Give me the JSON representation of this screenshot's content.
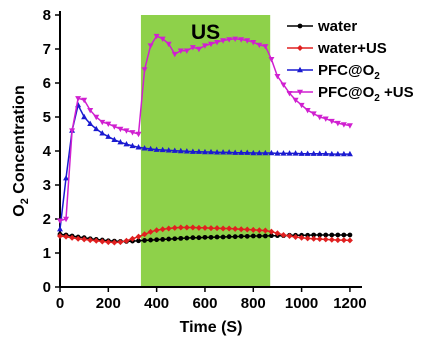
{
  "chart_data": {
    "type": "line",
    "title": "",
    "xlabel": "Time (S)",
    "ylabel_parts": [
      "O",
      "2",
      " Concentration"
    ],
    "xlim": [
      0,
      1250
    ],
    "ylim": [
      0,
      8
    ],
    "x_ticks": [
      0,
      200,
      400,
      600,
      800,
      1000,
      1200
    ],
    "y_ticks": [
      0,
      1,
      2,
      3,
      4,
      5,
      6,
      7,
      8
    ],
    "grid": false,
    "legend_position": "top-right",
    "shaded_region": {
      "x_start": 335,
      "x_end": 870,
      "label": "US",
      "color": "#8ed14a"
    },
    "series": [
      {
        "name": "water",
        "name_parts": [
          "water"
        ],
        "color": "#000000",
        "marker": "circle",
        "x": [
          0,
          25,
          50,
          75,
          100,
          125,
          150,
          175,
          200,
          225,
          250,
          275,
          300,
          325,
          350,
          375,
          400,
          425,
          450,
          475,
          500,
          525,
          550,
          575,
          600,
          625,
          650,
          675,
          700,
          725,
          750,
          775,
          800,
          825,
          850,
          875,
          900,
          925,
          950,
          975,
          1000,
          1025,
          1050,
          1075,
          1100,
          1125,
          1150,
          1175,
          1200
        ],
        "y": [
          1.55,
          1.53,
          1.5,
          1.47,
          1.45,
          1.42,
          1.4,
          1.38,
          1.36,
          1.35,
          1.34,
          1.34,
          1.35,
          1.36,
          1.37,
          1.38,
          1.39,
          1.4,
          1.41,
          1.42,
          1.43,
          1.44,
          1.45,
          1.45,
          1.46,
          1.46,
          1.47,
          1.47,
          1.48,
          1.48,
          1.49,
          1.49,
          1.5,
          1.5,
          1.5,
          1.51,
          1.51,
          1.51,
          1.52,
          1.52,
          1.52,
          1.52,
          1.53,
          1.53,
          1.53,
          1.53,
          1.53,
          1.53,
          1.53
        ]
      },
      {
        "name": "water+US",
        "name_parts": [
          "water+US"
        ],
        "color": "#e02020",
        "marker": "diamond",
        "x": [
          0,
          25,
          50,
          75,
          100,
          125,
          150,
          175,
          200,
          225,
          250,
          275,
          300,
          325,
          350,
          375,
          400,
          425,
          450,
          475,
          500,
          525,
          550,
          575,
          600,
          625,
          650,
          675,
          700,
          725,
          750,
          775,
          800,
          825,
          850,
          875,
          900,
          925,
          950,
          975,
          1000,
          1025,
          1050,
          1075,
          1100,
          1125,
          1150,
          1175,
          1200
        ],
        "y": [
          1.5,
          1.48,
          1.45,
          1.42,
          1.4,
          1.38,
          1.36,
          1.34,
          1.32,
          1.31,
          1.32,
          1.36,
          1.42,
          1.48,
          1.55,
          1.62,
          1.67,
          1.7,
          1.72,
          1.74,
          1.75,
          1.75,
          1.75,
          1.74,
          1.74,
          1.73,
          1.73,
          1.72,
          1.72,
          1.71,
          1.7,
          1.69,
          1.68,
          1.67,
          1.66,
          1.63,
          1.58,
          1.53,
          1.5,
          1.47,
          1.45,
          1.43,
          1.42,
          1.41,
          1.4,
          1.39,
          1.38,
          1.38,
          1.37
        ]
      },
      {
        "name": "PFC@O2",
        "name_parts": [
          "PFC@O",
          "2",
          ""
        ],
        "color": "#1a1ad0",
        "marker": "triangle",
        "x": [
          0,
          25,
          50,
          75,
          100,
          125,
          150,
          175,
          200,
          225,
          250,
          275,
          300,
          325,
          350,
          375,
          400,
          425,
          450,
          475,
          500,
          525,
          550,
          575,
          600,
          625,
          650,
          675,
          700,
          725,
          750,
          775,
          800,
          825,
          850,
          875,
          900,
          925,
          950,
          975,
          1000,
          1025,
          1050,
          1075,
          1100,
          1125,
          1150,
          1175,
          1200
        ],
        "y": [
          1.7,
          3.2,
          4.6,
          5.35,
          5.0,
          4.8,
          4.65,
          4.52,
          4.42,
          4.33,
          4.26,
          4.2,
          4.15,
          4.11,
          4.08,
          4.06,
          4.04,
          4.03,
          4.02,
          4.01,
          4.0,
          3.99,
          3.98,
          3.98,
          3.97,
          3.97,
          3.96,
          3.96,
          3.96,
          3.95,
          3.95,
          3.95,
          3.94,
          3.94,
          3.94,
          3.94,
          3.93,
          3.93,
          3.93,
          3.93,
          3.92,
          3.92,
          3.92,
          3.92,
          3.92,
          3.91,
          3.91,
          3.91,
          3.91
        ]
      },
      {
        "name": "PFC@O2 +US",
        "name_parts": [
          "PFC@O",
          "2",
          " +US"
        ],
        "color": "#d020d0",
        "marker": "triangle-down",
        "x": [
          0,
          25,
          50,
          75,
          100,
          125,
          150,
          175,
          200,
          225,
          250,
          275,
          300,
          325,
          350,
          375,
          400,
          425,
          450,
          475,
          500,
          525,
          550,
          575,
          600,
          625,
          650,
          675,
          700,
          725,
          750,
          775,
          800,
          825,
          850,
          875,
          900,
          925,
          950,
          975,
          1000,
          1025,
          1050,
          1075,
          1100,
          1125,
          1150,
          1175,
          1200
        ],
        "y": [
          1.95,
          2.0,
          4.6,
          5.55,
          5.5,
          5.2,
          5.0,
          4.85,
          4.8,
          4.72,
          4.65,
          4.6,
          4.55,
          4.5,
          6.4,
          7.1,
          7.38,
          7.3,
          7.15,
          6.85,
          6.95,
          6.95,
          7.05,
          7.0,
          7.1,
          7.15,
          7.2,
          7.25,
          7.28,
          7.3,
          7.28,
          7.25,
          7.2,
          7.12,
          7.08,
          6.7,
          6.2,
          5.95,
          5.7,
          5.5,
          5.35,
          5.2,
          5.1,
          5.0,
          4.95,
          4.88,
          4.82,
          4.78,
          4.75
        ]
      }
    ]
  }
}
